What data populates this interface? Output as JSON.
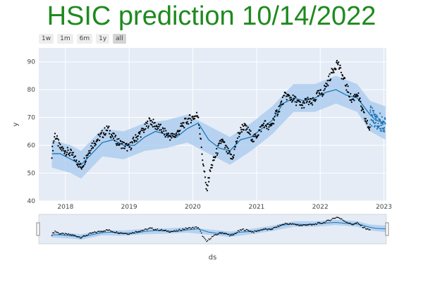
{
  "title": "HSIC prediction 10/14/2022",
  "range_selector": {
    "buttons": [
      "1w",
      "1m",
      "6m",
      "1y",
      "all"
    ],
    "active": "all"
  },
  "colors": {
    "title": "#1e8a1e",
    "plot_bg": "#e5ecf6",
    "band": "#a6caee",
    "line": "#1f77b4",
    "points": "#000000"
  },
  "chart_data": {
    "type": "line",
    "title": "HSIC prediction 10/14/2022",
    "xlabel": "ds",
    "ylabel": "y",
    "xlim": [
      "2017-08-01",
      "2023-01-15"
    ],
    "ylim": [
      40,
      95
    ],
    "x_ticks": [
      "2018",
      "2019",
      "2020",
      "2021",
      "2022",
      "2023"
    ],
    "y_ticks": [
      40,
      50,
      60,
      70,
      80,
      90
    ],
    "grid": true,
    "legend": "none",
    "series": [
      {
        "role": "observed",
        "mark": "scatter",
        "points": [
          [
            "2017-10-15",
            57
          ],
          [
            "2017-11-01",
            64
          ],
          [
            "2017-12-01",
            59
          ],
          [
            "2018-01-01",
            58
          ],
          [
            "2018-02-01",
            57
          ],
          [
            "2018-03-01",
            55
          ],
          [
            "2018-04-01",
            52
          ],
          [
            "2018-05-01",
            56
          ],
          [
            "2018-06-01",
            60
          ],
          [
            "2018-07-01",
            62
          ],
          [
            "2018-08-01",
            64
          ],
          [
            "2018-09-01",
            66
          ],
          [
            "2018-10-01",
            63
          ],
          [
            "2018-11-01",
            61
          ],
          [
            "2018-12-01",
            60
          ],
          [
            "2019-01-01",
            59
          ],
          [
            "2019-02-01",
            62
          ],
          [
            "2019-03-01",
            64
          ],
          [
            "2019-04-01",
            66
          ],
          [
            "2019-05-01",
            69
          ],
          [
            "2019-06-01",
            67
          ],
          [
            "2019-07-01",
            66
          ],
          [
            "2019-08-01",
            64
          ],
          [
            "2019-09-01",
            63
          ],
          [
            "2019-10-01",
            64
          ],
          [
            "2019-11-01",
            67
          ],
          [
            "2019-12-01",
            69
          ],
          [
            "2020-01-01",
            70
          ],
          [
            "2020-02-01",
            71
          ],
          [
            "2020-03-01",
            53
          ],
          [
            "2020-03-20",
            44
          ],
          [
            "2020-04-15",
            52
          ],
          [
            "2020-05-15",
            57
          ],
          [
            "2020-06-15",
            62
          ],
          [
            "2020-07-15",
            58
          ],
          [
            "2020-08-15",
            55
          ],
          [
            "2020-09-15",
            63
          ],
          [
            "2020-10-15",
            67
          ],
          [
            "2020-11-15",
            65
          ],
          [
            "2020-12-15",
            62
          ],
          [
            "2021-01-15",
            65
          ],
          [
            "2021-02-15",
            68
          ],
          [
            "2021-03-15",
            66
          ],
          [
            "2021-04-15",
            70
          ],
          [
            "2021-05-15",
            74
          ],
          [
            "2021-06-15",
            78
          ],
          [
            "2021-07-15",
            77
          ],
          [
            "2021-08-15",
            76
          ],
          [
            "2021-09-15",
            74
          ],
          [
            "2021-10-15",
            76
          ],
          [
            "2021-11-15",
            75
          ],
          [
            "2021-12-15",
            78
          ],
          [
            "2022-01-15",
            79
          ],
          [
            "2022-02-15",
            83
          ],
          [
            "2022-03-15",
            87
          ],
          [
            "2022-04-10",
            90
          ],
          [
            "2022-05-01",
            86
          ],
          [
            "2022-06-01",
            81
          ],
          [
            "2022-07-01",
            76
          ],
          [
            "2022-08-01",
            79
          ],
          [
            "2022-09-01",
            72
          ],
          [
            "2022-10-01",
            67
          ],
          [
            "2022-10-14",
            66
          ]
        ]
      },
      {
        "role": "forecast",
        "mark": "line",
        "points": [
          [
            "2017-10-15",
            57
          ],
          [
            "2017-12-01",
            57
          ],
          [
            "2018-02-01",
            55
          ],
          [
            "2018-04-01",
            53
          ],
          [
            "2018-06-01",
            57
          ],
          [
            "2018-08-01",
            61
          ],
          [
            "2018-10-01",
            62
          ],
          [
            "2018-12-01",
            60
          ],
          [
            "2019-02-01",
            60
          ],
          [
            "2019-04-01",
            63
          ],
          [
            "2019-06-01",
            65
          ],
          [
            "2019-08-01",
            64
          ],
          [
            "2019-10-01",
            63
          ],
          [
            "2019-12-01",
            66
          ],
          [
            "2020-02-01",
            68
          ],
          [
            "2020-04-01",
            62
          ],
          [
            "2020-06-01",
            59
          ],
          [
            "2020-08-01",
            58
          ],
          [
            "2020-10-01",
            62
          ],
          [
            "2020-12-01",
            63
          ],
          [
            "2021-02-01",
            66
          ],
          [
            "2021-04-01",
            69
          ],
          [
            "2021-06-01",
            75
          ],
          [
            "2021-08-01",
            77
          ],
          [
            "2021-10-01",
            76
          ],
          [
            "2021-12-01",
            77
          ],
          [
            "2022-02-01",
            79
          ],
          [
            "2022-04-01",
            80
          ],
          [
            "2022-06-01",
            78
          ],
          [
            "2022-08-01",
            77
          ],
          [
            "2022-10-14",
            71
          ],
          [
            "2022-11-15",
            69
          ],
          [
            "2023-01-10",
            68
          ]
        ]
      },
      {
        "role": "uncertainty-band",
        "mark": "area",
        "lower": [
          [
            "2017-10-15",
            52
          ],
          [
            "2018-02-01",
            50
          ],
          [
            "2018-04-01",
            48
          ],
          [
            "2018-08-01",
            56
          ],
          [
            "2018-12-01",
            55
          ],
          [
            "2019-04-01",
            58
          ],
          [
            "2019-08-01",
            59
          ],
          [
            "2019-12-01",
            61
          ],
          [
            "2020-04-01",
            57
          ],
          [
            "2020-08-01",
            53
          ],
          [
            "2020-12-01",
            58
          ],
          [
            "2021-04-01",
            64
          ],
          [
            "2021-08-01",
            72
          ],
          [
            "2021-12-01",
            72
          ],
          [
            "2022-04-01",
            75
          ],
          [
            "2022-08-01",
            72
          ],
          [
            "2022-10-14",
            65
          ],
          [
            "2023-01-10",
            62
          ]
        ],
        "upper": [
          [
            "2017-10-15",
            62
          ],
          [
            "2018-02-01",
            60
          ],
          [
            "2018-04-01",
            58
          ],
          [
            "2018-08-01",
            66
          ],
          [
            "2018-12-01",
            65
          ],
          [
            "2019-04-01",
            68
          ],
          [
            "2019-08-01",
            69
          ],
          [
            "2019-12-01",
            71
          ],
          [
            "2020-04-01",
            67
          ],
          [
            "2020-08-01",
            63
          ],
          [
            "2020-12-01",
            68
          ],
          [
            "2021-04-01",
            74
          ],
          [
            "2021-08-01",
            82
          ],
          [
            "2021-12-01",
            82
          ],
          [
            "2022-04-01",
            85
          ],
          [
            "2022-08-01",
            82
          ],
          [
            "2022-10-14",
            76
          ],
          [
            "2023-01-10",
            74
          ]
        ]
      }
    ]
  }
}
